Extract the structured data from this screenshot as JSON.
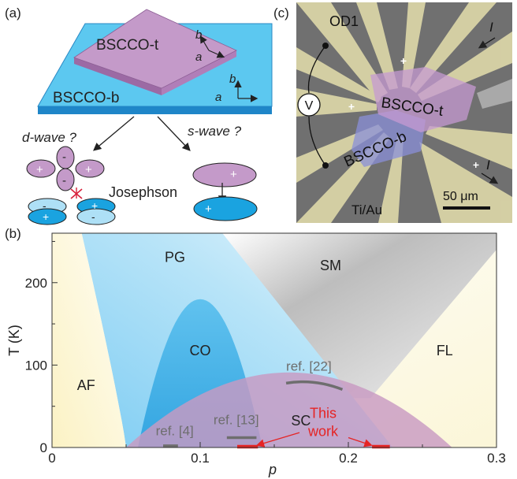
{
  "panel_a": {
    "label": "(a)",
    "top_crystal": "BSCCO-t",
    "bottom_crystal": "BSCCO-b",
    "axis_b": "b",
    "axis_a": "a",
    "dwave_text": "d-wave ?",
    "swave_text": "s-wave ?",
    "josephson": "Josephson",
    "plus": "+",
    "minus": "-",
    "colors": {
      "substrate": "#5cc8f0",
      "substrate_edge": "#1f86c8",
      "crystal": "#c49ac9",
      "crystal_side": "#9c6aa4",
      "blue_lobe": "#1aa3e0",
      "red_mark": "#d8213b"
    }
  },
  "panel_c": {
    "label": "(c)",
    "electrode_label": "OD1",
    "top_crystal": "BSCCO-t",
    "bottom_crystal": "BSCCO-b",
    "current_top": "I",
    "current_bottom": "I",
    "voltmeter": "V",
    "scale_bar": "50 μm",
    "contacts": "Ti/Au",
    "colors": {
      "background": "#6f6f6f",
      "leads": "#d8d3a8",
      "top_flake": "#c59ad2",
      "bottom_flake": "#8a8fd8"
    }
  },
  "panel_b": {
    "label": "(b)",
    "chart_data": {
      "type": "area",
      "xlabel": "p",
      "ylabel": "T (K)",
      "xlim": [
        0,
        0.3
      ],
      "ylim": [
        0,
        260
      ],
      "x_ticks": [
        "0",
        "0.1",
        "0.2",
        "0.3"
      ],
      "y_ticks": [
        "0",
        "100",
        "200"
      ],
      "regions": [
        {
          "name": "AF",
          "label_x": 0.023,
          "label_y": 70
        },
        {
          "name": "PG",
          "label_x": 0.083,
          "label_y": 225
        },
        {
          "name": "SM",
          "label_x": 0.188,
          "label_y": 215
        },
        {
          "name": "CO",
          "label_x": 0.1,
          "label_y": 112
        },
        {
          "name": "FL",
          "label_x": 0.265,
          "label_y": 112
        },
        {
          "name": "SC",
          "label_x": 0.168,
          "label_y": 27
        }
      ],
      "sc_dome": {
        "p_start": 0.05,
        "p_end": 0.27,
        "Tc_max": 91
      },
      "co_dome": {
        "p_start": 0.07,
        "p_end": 0.13,
        "T_max": 180
      },
      "references": [
        {
          "label": "ref. [4]",
          "p": [
            0.075,
            0.085
          ],
          "T": 2,
          "text_p": 0.07,
          "text_T": 15
        },
        {
          "label": "ref. [13]",
          "p": [
            0.118,
            0.138
          ],
          "T": 12,
          "text_p": 0.109,
          "text_T": 28
        },
        {
          "label": "ref. [22]",
          "p": [
            0.158,
            0.196
          ],
          "T": 78,
          "text_p": 0.158,
          "text_T": 93
        }
      ],
      "this_work": {
        "label_line1": "This",
        "label_line2": "work",
        "segments": [
          [
            0.125,
            0.139
          ],
          [
            0.216,
            0.228
          ]
        ],
        "T": 0
      },
      "colors": {
        "AF": "#f7f1c8",
        "PG": "#8fd4f5",
        "SM": "#c9c9c9",
        "CO": "#48b3e8",
        "FL": "#fbf8e4",
        "SC": "#c89ac2",
        "ref": "#6e6e6e",
        "this_work": "#e52424"
      }
    }
  }
}
